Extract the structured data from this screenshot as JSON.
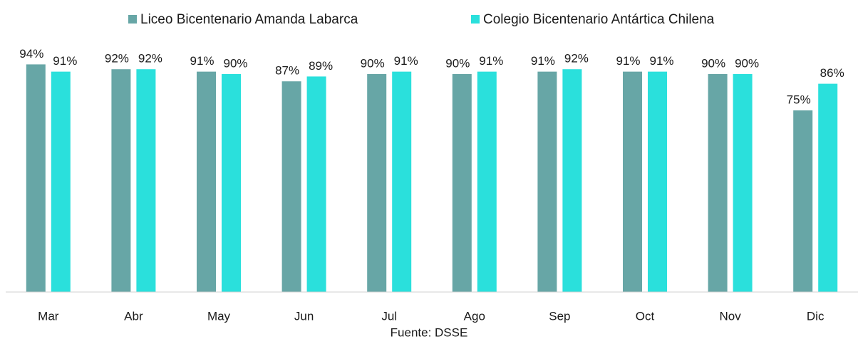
{
  "chart_data": {
    "type": "bar",
    "categories": [
      "Mar",
      "Abr",
      "May",
      "Jun",
      "Jul",
      "Ago",
      "Sep",
      "Oct",
      "Nov",
      "Dic"
    ],
    "series": [
      {
        "name": "Liceo Bicentenario Amanda Labarca",
        "color": "#67a6a6",
        "values": [
          94,
          92,
          91,
          87,
          90,
          90,
          91,
          91,
          90,
          75
        ],
        "value_labels": [
          "94%",
          "92%",
          "91%",
          "87%",
          "90%",
          "90%",
          "91%",
          "91%",
          "90%",
          "75%"
        ]
      },
      {
        "name": "Colegio Bicentenario Antártica Chilena",
        "color": "#2ae0dc",
        "values": [
          91,
          92,
          90,
          89,
          91,
          91,
          92,
          91,
          90,
          86
        ],
        "value_labels": [
          "91%",
          "92%",
          "90%",
          "89%",
          "91%",
          "91%",
          "92%",
          "91%",
          "90%",
          "86%"
        ]
      }
    ],
    "ylim": [
      0,
      120
    ],
    "source": "Fuente: DSSE",
    "legend": "top"
  }
}
